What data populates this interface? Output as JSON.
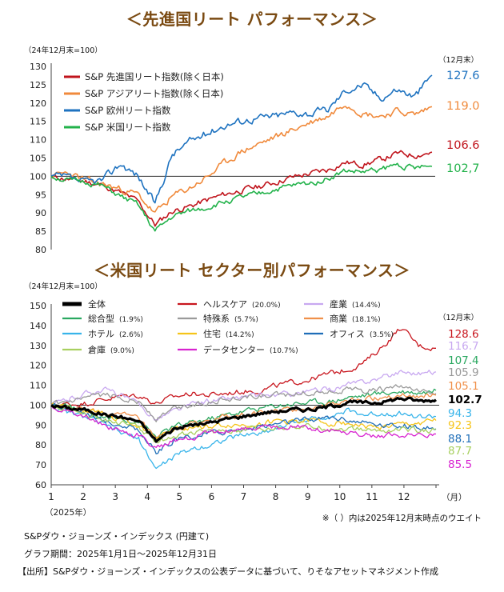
{
  "titles": {
    "top": "＜先進国リート パフォーマンス＞",
    "bottom": "＜米国リート セクター別パフォーマンス＞"
  },
  "chart_data": [
    {
      "type": "line",
      "title": "＜先進国リート パフォーマンス＞",
      "base_label": "（24年12月末=100）",
      "end_label": "（12月末）",
      "ylim": [
        80,
        130
      ],
      "yticks": [
        80,
        85,
        90,
        95,
        100,
        105,
        110,
        115,
        120,
        125,
        130
      ],
      "grid": false,
      "baseline": 100,
      "legend_position": "top-left",
      "series": [
        {
          "name": "S&P 先進国リート指数(除く日本)",
          "color": "#c0141c",
          "end_value": 106.6,
          "end_label": "106.6",
          "values": [
            100,
            99.2,
            98.6,
            97.5,
            95.5,
            93.2,
            86.8,
            90.5,
            91.8,
            93.5,
            95.0,
            96.2,
            97.2,
            98.5,
            99.8,
            100.8,
            101.8,
            103.8,
            103.2,
            104.5,
            106.2,
            105.8,
            106.6
          ]
        },
        {
          "name": "S&P アジアリート指数(除く日本)",
          "color": "#f08a3c",
          "end_value": 119.0,
          "end_label": "119.0",
          "values": [
            100,
            101.0,
            98.8,
            97.8,
            96.5,
            95.0,
            89.8,
            94.5,
            96.8,
            99.8,
            103.5,
            106.8,
            108.8,
            110.8,
            112.8,
            114.8,
            116.5,
            120.2,
            117.2,
            116.5,
            117.8,
            116.8,
            119.0
          ]
        },
        {
          "name": "S&P 欧州リート指数",
          "color": "#1f73c0",
          "end_value": 127.6,
          "end_label": "127.6",
          "values": [
            100,
            99.5,
            98.2,
            99.0,
            103.5,
            100.2,
            92.5,
            106.0,
            109.5,
            111.8,
            114.0,
            115.2,
            116.0,
            116.5,
            117.5,
            117.2,
            118.2,
            123.5,
            125.0,
            121.5,
            123.8,
            121.8,
            127.6
          ]
        },
        {
          "name": "S&P 米国リート指数",
          "color": "#22b24a",
          "end_value": 102.7,
          "end_label": "102,7",
          "values": [
            100,
            98.8,
            98.5,
            97.2,
            94.5,
            92.2,
            85.0,
            89.0,
            90.5,
            91.5,
            93.0,
            94.2,
            95.2,
            96.5,
            97.5,
            98.2,
            99.5,
            101.5,
            101.2,
            101.8,
            103.2,
            102.2,
            102.7
          ]
        }
      ]
    },
    {
      "type": "line",
      "title": "＜米国リート セクター別パフォーマンス＞",
      "base_label": "（24年12月末=100）",
      "end_label": "（12月末）",
      "ylim": [
        60,
        150
      ],
      "yticks": [
        60,
        70,
        80,
        90,
        100,
        110,
        120,
        130,
        140,
        150
      ],
      "xticks": [
        "1",
        "2",
        "3",
        "4",
        "5",
        "6",
        "7",
        "8",
        "9",
        "10",
        "11",
        "12"
      ],
      "xunit": "（月）",
      "xsub": "（2025年）",
      "grid": false,
      "baseline": 100,
      "legend_position": "top",
      "series": [
        {
          "name": "全体",
          "weight": "",
          "color": "#000000",
          "width": 3.2,
          "end_value": 102.7,
          "end_label": "102.7",
          "values": [
            100,
            98.5,
            97.5,
            95.5,
            94.0,
            92.0,
            82.0,
            88.0,
            90.0,
            91.0,
            93.0,
            94.5,
            96.0,
            97.0,
            97.8,
            98.0,
            99.5,
            101.5,
            101.0,
            101.8,
            103.5,
            102.2,
            102.7
          ]
        },
        {
          "name": "ヘルスケア",
          "weight": "(20.0%)",
          "color": "#c8161e",
          "end_value": 128.6,
          "end_label": "128.6",
          "values": [
            100,
            100.5,
            101.0,
            103.0,
            104.5,
            105.0,
            101.0,
            104.0,
            106.0,
            105.0,
            106.0,
            107.0,
            107.5,
            110.0,
            111.5,
            113.5,
            116.0,
            118.0,
            122.0,
            130.0,
            139.0,
            130.0,
            128.6
          ]
        },
        {
          "name": "産業",
          "weight": "(14.4%)",
          "color": "#c8a8f0",
          "end_value": 116.7,
          "end_label": "116.7",
          "values": [
            100,
            103.0,
            106.0,
            108.0,
            105.0,
            100.0,
            93.0,
            97.0,
            100.0,
            102.0,
            103.0,
            104.0,
            104.5,
            105.0,
            106.0,
            107.0,
            108.0,
            110.0,
            112.0,
            114.0,
            117.0,
            116.0,
            116.7
          ]
        },
        {
          "name": "総合型",
          "weight": "(1.9%)",
          "color": "#2aa860",
          "end_value": 107.4,
          "end_label": "107.4",
          "values": [
            100,
            99.0,
            97.0,
            94.0,
            93.0,
            92.0,
            84.0,
            89.0,
            91.0,
            93.0,
            95.0,
            97.0,
            98.5,
            100.0,
            101.0,
            101.5,
            102.0,
            104.0,
            105.0,
            106.0,
            107.0,
            106.5,
            107.4
          ]
        },
        {
          "name": "特殊系",
          "weight": "(5.7%)",
          "color": "#9a9a9a",
          "end_value": 105.9,
          "end_label": "105.9",
          "values": [
            100,
            101.0,
            103.0,
            105.0,
            104.0,
            102.0,
            93.0,
            98.0,
            100.0,
            102.0,
            103.0,
            104.0,
            104.5,
            105.0,
            106.0,
            106.5,
            107.0,
            108.0,
            107.0,
            108.0,
            109.0,
            106.5,
            105.9
          ]
        },
        {
          "name": "商業",
          "weight": "(18.1%)",
          "color": "#f0904a",
          "end_value": 105.1,
          "end_label": "105.1",
          "values": [
            100,
            98.0,
            97.0,
            96.0,
            95.0,
            93.0,
            82.0,
            88.0,
            90.0,
            92.0,
            94.0,
            95.0,
            96.0,
            97.0,
            98.0,
            99.0,
            100.0,
            102.0,
            103.0,
            104.0,
            105.5,
            104.5,
            105.1
          ]
        },
        {
          "name": "ホテル",
          "weight": "(2.6%)",
          "color": "#38b4ea",
          "end_value": 94.3,
          "end_label": "94.3",
          "values": [
            100,
            96.0,
            94.0,
            90.0,
            86.0,
            83.0,
            68.0,
            74.0,
            78.0,
            80.0,
            83.0,
            85.0,
            86.0,
            89.0,
            92.0,
            93.0,
            95.0,
            97.0,
            95.0,
            96.0,
            96.0,
            94.0,
            94.3
          ]
        },
        {
          "name": "住宅",
          "weight": "(14.2%)",
          "color": "#f5c41a",
          "end_value": 92.3,
          "end_label": "92.3",
          "values": [
            100,
            98.0,
            97.0,
            95.0,
            93.0,
            90.0,
            84.0,
            88.0,
            89.0,
            89.0,
            90.0,
            90.0,
            91.0,
            92.0,
            92.0,
            92.0,
            91.0,
            91.0,
            89.0,
            89.0,
            90.0,
            91.0,
            92.3
          ]
        },
        {
          "name": "オフィス",
          "weight": "(3.5%)",
          "color": "#1f6eb8",
          "end_value": 88.1,
          "end_label": "88.1",
          "values": [
            100,
            99.0,
            96.0,
            92.0,
            90.0,
            88.0,
            76.0,
            82.0,
            84.0,
            86.0,
            87.0,
            88.0,
            89.0,
            91.0,
            92.0,
            93.0,
            94.0,
            93.0,
            91.0,
            90.0,
            90.0,
            88.5,
            88.1
          ]
        },
        {
          "name": "倉庫",
          "weight": "(9.0%)",
          "color": "#a8d060",
          "end_value": 87.7,
          "end_label": "87.7",
          "values": [
            100,
            98.0,
            96.0,
            93.0,
            91.0,
            89.0,
            81.0,
            85.0,
            86.0,
            87.0,
            87.5,
            88.0,
            88.5,
            89.0,
            89.5,
            89.0,
            88.5,
            88.0,
            87.5,
            87.0,
            88.0,
            87.5,
            87.7
          ]
        },
        {
          "name": "データセンター",
          "weight": "(10.7%)",
          "color": "#d824d0",
          "end_value": 85.5,
          "end_label": "85.5",
          "values": [
            100,
            97.0,
            94.0,
            90.0,
            87.0,
            85.0,
            78.0,
            82.0,
            84.0,
            86.0,
            87.0,
            88.0,
            88.5,
            89.0,
            89.0,
            88.0,
            87.0,
            86.0,
            85.0,
            84.5,
            85.0,
            84.5,
            85.5
          ]
        }
      ]
    }
  ],
  "footnotes": {
    "weight_note": "※（ ）内は2025年12月末時点のウエイト",
    "source_line": "S&Pダウ・ジョーンズ・インデックス (円建て)",
    "period_line": "グラフ期間：2025年1月1日～2025年12月31日",
    "credit_line": "【出所】S&Pダウ・ジョーンズ・インデックスの公表データに基づいて、りそなアセットマネジメント作成"
  }
}
